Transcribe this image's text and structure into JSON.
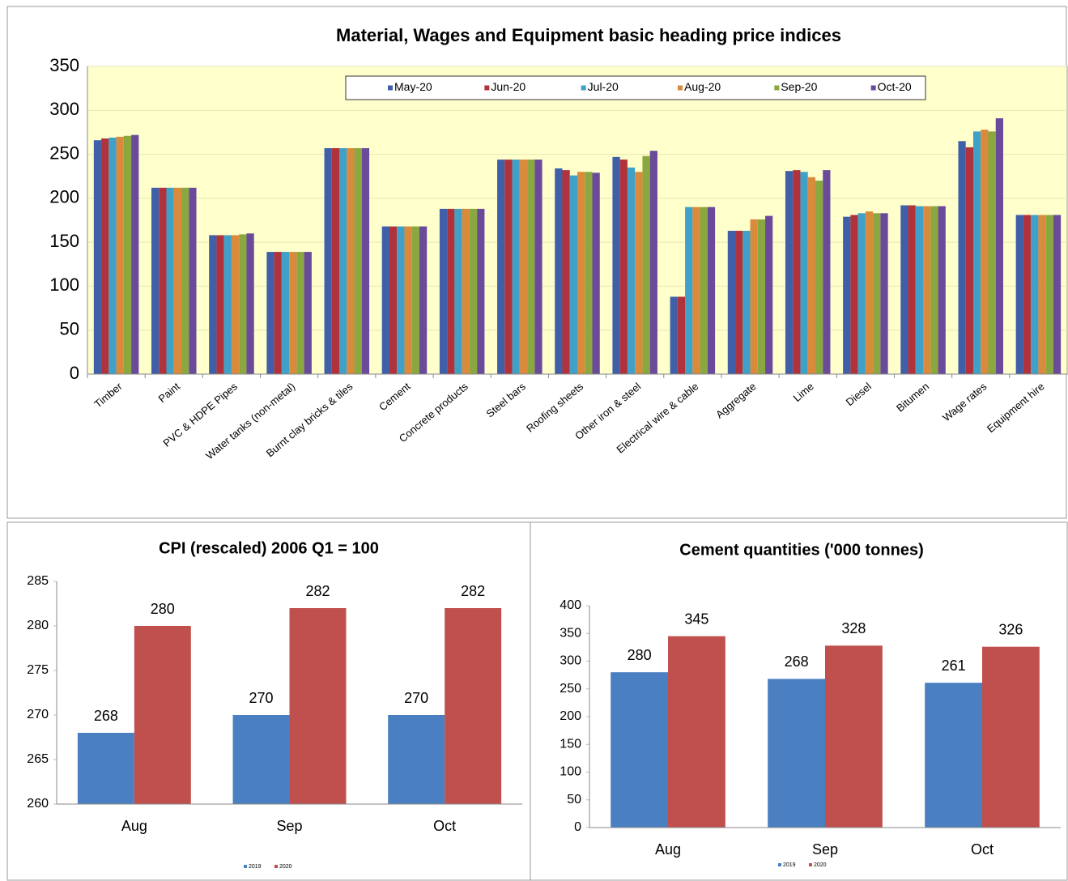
{
  "chart_data": [
    {
      "type": "bar",
      "title": "Material, Wages and Equipment basic heading price indices",
      "categories": [
        "Timber",
        "Paint",
        "PVC & HDPE Pipes",
        "Water tanks (non-metal)",
        "Burnt clay bricks & tiles",
        "Cement",
        "Concrete products",
        "Steel bars",
        "Roofing sheets",
        "Other iron & steel",
        "Electrical wire & cable",
        "Aggregate",
        "Lime",
        "Diesel",
        "Bitumen",
        "Wage rates",
        "Equipment hire"
      ],
      "series": [
        {
          "name": "May-20",
          "color": "#3f5fa8",
          "values": [
            266,
            212,
            158,
            139,
            257,
            168,
            188,
            244,
            234,
            247,
            88,
            163,
            231,
            179,
            192,
            265,
            181
          ]
        },
        {
          "name": "Jun-20",
          "color": "#b0333b",
          "values": [
            268,
            212,
            158,
            139,
            257,
            168,
            188,
            244,
            232,
            244,
            88,
            163,
            232,
            181,
            192,
            258,
            181
          ]
        },
        {
          "name": "Jul-20",
          "color": "#3fa0c8",
          "values": [
            269,
            212,
            158,
            139,
            257,
            168,
            188,
            244,
            226,
            235,
            190,
            163,
            230,
            183,
            191,
            276,
            181
          ]
        },
        {
          "name": "Aug-20",
          "color": "#d98a3c",
          "values": [
            270,
            212,
            158,
            139,
            257,
            168,
            188,
            244,
            230,
            230,
            190,
            176,
            224,
            185,
            191,
            278,
            181
          ]
        },
        {
          "name": "Sep-20",
          "color": "#8aa83f",
          "values": [
            271,
            212,
            159,
            139,
            257,
            168,
            188,
            244,
            230,
            248,
            190,
            176,
            220,
            183,
            191,
            276,
            181
          ]
        },
        {
          "name": "Oct-20",
          "color": "#6a4a9a",
          "values": [
            272,
            212,
            160,
            139,
            257,
            168,
            188,
            244,
            229,
            254,
            190,
            180,
            232,
            183,
            191,
            291,
            181
          ]
        }
      ],
      "ylim": [
        0,
        350
      ],
      "yticks": [
        0,
        50,
        100,
        150,
        200,
        250,
        300,
        350
      ],
      "grid": true,
      "legend": "top"
    },
    {
      "type": "bar",
      "title": "CPI (rescaled) 2006 Q1 = 100",
      "categories": [
        "Aug",
        "Sep",
        "Oct"
      ],
      "series": [
        {
          "name": "2019",
          "color": "#4a7fc1",
          "values": [
            268,
            270,
            270
          ]
        },
        {
          "name": "2020",
          "color": "#c0504d",
          "values": [
            280,
            282,
            282
          ]
        }
      ],
      "ylim": [
        260,
        285
      ],
      "yticks": [
        260,
        265,
        270,
        275,
        280,
        285
      ],
      "grid": false,
      "legend": "bottom"
    },
    {
      "type": "bar",
      "title": "Cement quantities ('000 tonnes)",
      "categories": [
        "Aug",
        "Sep",
        "Oct"
      ],
      "series": [
        {
          "name": "2019",
          "color": "#4a7fc1",
          "values": [
            280,
            268,
            261
          ]
        },
        {
          "name": "2020",
          "color": "#c0504d",
          "values": [
            345,
            328,
            326
          ]
        }
      ],
      "ylim": [
        0,
        400
      ],
      "yticks": [
        0,
        50,
        100,
        150,
        200,
        250,
        300,
        350,
        400
      ],
      "grid": false,
      "legend": "bottom"
    }
  ]
}
